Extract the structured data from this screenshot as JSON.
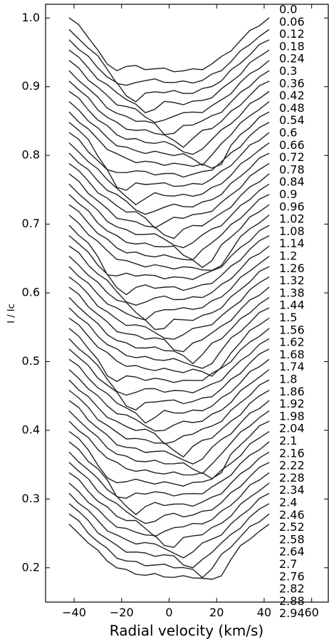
{
  "chart_data": {
    "type": "line",
    "title": "",
    "xlabel": "Radial velocity (km/s)",
    "ylabel": "I / Ic",
    "xlim": [
      -52,
      67
    ],
    "ylim": [
      0.15,
      1.02
    ],
    "grid": false,
    "legend": "none",
    "line_color": "#222222",
    "x_ticks": [
      {
        "value": -40,
        "label": "−40"
      },
      {
        "value": -20,
        "label": "−20"
      },
      {
        "value": 0,
        "label": "0"
      },
      {
        "value": 20,
        "label": "20"
      },
      {
        "value": 40,
        "label": "40"
      },
      {
        "value": 60,
        "label": "60"
      }
    ],
    "y_ticks": [
      {
        "value": 0.2,
        "label": "0.2"
      },
      {
        "value": 0.3,
        "label": "0.3"
      },
      {
        "value": 0.4,
        "label": "0.4"
      },
      {
        "value": 0.5,
        "label": "0.5"
      },
      {
        "value": 0.6,
        "label": "0.6"
      },
      {
        "value": 0.7,
        "label": "0.7"
      },
      {
        "value": 0.8,
        "label": "0.8"
      },
      {
        "value": 0.9,
        "label": "0.9"
      },
      {
        "value": 1.0,
        "label": "1.0"
      }
    ],
    "x": [
      -42,
      -38,
      -34,
      -30,
      -26,
      -22,
      -18,
      -14,
      -10,
      -6,
      -2,
      2,
      6,
      10,
      14,
      18,
      22,
      26,
      30,
      34,
      38,
      42
    ],
    "base_profile": [
      0.0,
      -0.012,
      -0.026,
      -0.04,
      -0.052,
      -0.062,
      -0.068,
      -0.071,
      -0.073,
      -0.074,
      -0.075,
      -0.076,
      -0.077,
      -0.076,
      -0.073,
      -0.067,
      -0.058,
      -0.046,
      -0.033,
      -0.02,
      -0.009,
      0.0
    ],
    "feature": {
      "amplitude": -0.018,
      "width_kms": 5,
      "start_kms": -25,
      "travel_kms": 50,
      "period": 0.6
    },
    "phase_labels": [
      "0.0",
      "0.06",
      "0.12",
      "0.18",
      "0.24",
      "0.3",
      "0.36",
      "0.42",
      "0.48",
      "0.54",
      "0.6",
      "0.66",
      "0.72",
      "0.78",
      "0.84",
      "0.9",
      "0.96",
      "1.02",
      "1.08",
      "1.14",
      "1.2",
      "1.26",
      "1.32",
      "1.38",
      "1.44",
      "1.5",
      "1.56",
      "1.62",
      "1.68",
      "1.74",
      "1.8",
      "1.86",
      "1.92",
      "1.98",
      "2.04",
      "2.1",
      "2.16",
      "2.22",
      "2.28",
      "2.34",
      "2.4",
      "2.46",
      "2.52",
      "2.58",
      "2.64",
      "2.7",
      "2.76",
      "2.82",
      "2.88",
      "2.94"
    ],
    "offsets": [
      1.0,
      0.983,
      0.968,
      0.953,
      0.938,
      0.923,
      0.908,
      0.893,
      0.878,
      0.863,
      0.848,
      0.833,
      0.818,
      0.803,
      0.788,
      0.773,
      0.758,
      0.743,
      0.728,
      0.713,
      0.698,
      0.683,
      0.668,
      0.653,
      0.638,
      0.623,
      0.608,
      0.593,
      0.578,
      0.563,
      0.548,
      0.533,
      0.518,
      0.503,
      0.488,
      0.473,
      0.458,
      0.443,
      0.428,
      0.413,
      0.398,
      0.383,
      0.368,
      0.353,
      0.338,
      0.323,
      0.308,
      0.293,
      0.278,
      0.263
    ]
  }
}
